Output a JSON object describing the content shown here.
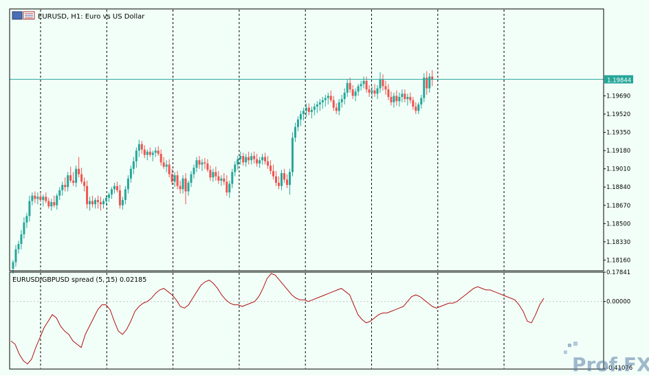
{
  "window_title": "EURUSD, H1: Euro vs US Dollar",
  "watermark": "Prof.FX",
  "colors": {
    "background": "#f2fff8",
    "bull": "#26a69a",
    "bear": "#ef5350",
    "spread_line": "#b01010",
    "price_line": "#26a69a",
    "price_tag_bg": "#26a69a",
    "frame": "#000000"
  },
  "chart_data": [
    {
      "type": "candlestick",
      "symbol": "EURUSD",
      "timeframe": "H1",
      "title": "EURUSD, H1: Euro vs US Dollar",
      "ylim": [
        1.1806,
        1.205
      ],
      "y_ticks": [
        "1.19690",
        "1.19520",
        "1.19350",
        "1.19180",
        "1.19010",
        "1.18840",
        "1.18670",
        "1.18500",
        "1.18330",
        "1.18160"
      ],
      "current_price": "1.19844",
      "grid": "vertical dashed day separators",
      "day_separator_count": 8,
      "ohlc": [
        [
          1.1808,
          1.1816,
          1.1803,
          1.1814
        ],
        [
          1.1814,
          1.183,
          1.181,
          1.1826
        ],
        [
          1.1826,
          1.1834,
          1.1822,
          1.1831
        ],
        [
          1.1831,
          1.1844,
          1.1826,
          1.184
        ],
        [
          1.184,
          1.1856,
          1.1836,
          1.1851
        ],
        [
          1.1851,
          1.186,
          1.1846,
          1.1857
        ],
        [
          1.1857,
          1.1876,
          1.1852,
          1.1871
        ],
        [
          1.1871,
          1.1879,
          1.1867,
          1.1876
        ],
        [
          1.1876,
          1.188,
          1.1869,
          1.1873
        ],
        [
          1.1873,
          1.1879,
          1.1868,
          1.1875
        ],
        [
          1.1875,
          1.1879,
          1.187,
          1.1872
        ],
        [
          1.1872,
          1.1877,
          1.1866,
          1.1875
        ],
        [
          1.1875,
          1.1879,
          1.1869,
          1.1871
        ],
        [
          1.1871,
          1.1874,
          1.1864,
          1.1866
        ],
        [
          1.1866,
          1.1873,
          1.1862,
          1.187
        ],
        [
          1.187,
          1.1876,
          1.1865,
          1.1867
        ],
        [
          1.1867,
          1.1878,
          1.1863,
          1.1876
        ],
        [
          1.1876,
          1.1884,
          1.1872,
          1.1881
        ],
        [
          1.1881,
          1.1889,
          1.1876,
          1.1886
        ],
        [
          1.1886,
          1.1893,
          1.188,
          1.1884
        ],
        [
          1.1884,
          1.1898,
          1.188,
          1.1895
        ],
        [
          1.1895,
          1.1903,
          1.1888,
          1.189
        ],
        [
          1.189,
          1.1898,
          1.1885,
          1.1888
        ],
        [
          1.1888,
          1.1904,
          1.1884,
          1.1901
        ],
        [
          1.1901,
          1.1912,
          1.1893,
          1.1896
        ],
        [
          1.1896,
          1.1902,
          1.1887,
          1.1889
        ],
        [
          1.1889,
          1.1893,
          1.188,
          1.1885
        ],
        [
          1.1885,
          1.189,
          1.1864,
          1.1868
        ],
        [
          1.1868,
          1.1875,
          1.1862,
          1.1871
        ],
        [
          1.1871,
          1.1876,
          1.1865,
          1.1868
        ],
        [
          1.1868,
          1.1874,
          1.1864,
          1.1872
        ],
        [
          1.1872,
          1.1876,
          1.1864,
          1.187
        ],
        [
          1.187,
          1.1875,
          1.1862,
          1.1868
        ],
        [
          1.1868,
          1.1873,
          1.1864,
          1.1871
        ],
        [
          1.1871,
          1.1876,
          1.1867,
          1.1874
        ],
        [
          1.1874,
          1.1879,
          1.187,
          1.1877
        ],
        [
          1.1877,
          1.1884,
          1.1873,
          1.1882
        ],
        [
          1.1882,
          1.1888,
          1.1878,
          1.1885
        ],
        [
          1.1885,
          1.1889,
          1.1879,
          1.1881
        ],
        [
          1.1881,
          1.1886,
          1.1864,
          1.1867
        ],
        [
          1.1867,
          1.1875,
          1.1863,
          1.1872
        ],
        [
          1.1872,
          1.1885,
          1.1868,
          1.1882
        ],
        [
          1.1882,
          1.1895,
          1.1878,
          1.1892
        ],
        [
          1.1892,
          1.1904,
          1.1888,
          1.1901
        ],
        [
          1.1901,
          1.1912,
          1.1896,
          1.1908
        ],
        [
          1.1908,
          1.1921,
          1.1902,
          1.1918
        ],
        [
          1.1918,
          1.1928,
          1.1912,
          1.1924
        ],
        [
          1.1924,
          1.1927,
          1.1915,
          1.1919
        ],
        [
          1.1919,
          1.1923,
          1.1911,
          1.1914
        ],
        [
          1.1914,
          1.1919,
          1.1909,
          1.1917
        ],
        [
          1.1917,
          1.1921,
          1.1912,
          1.1914
        ],
        [
          1.1914,
          1.1918,
          1.1908,
          1.1916
        ],
        [
          1.1916,
          1.1921,
          1.1912,
          1.1918
        ],
        [
          1.1918,
          1.1922,
          1.1913,
          1.1915
        ],
        [
          1.1915,
          1.1919,
          1.1904,
          1.1907
        ],
        [
          1.1907,
          1.1912,
          1.1901,
          1.1903
        ],
        [
          1.1903,
          1.1909,
          1.1898,
          1.1905
        ],
        [
          1.1905,
          1.191,
          1.1893,
          1.1896
        ],
        [
          1.1896,
          1.1901,
          1.1886,
          1.1889
        ],
        [
          1.1889,
          1.1898,
          1.1884,
          1.1895
        ],
        [
          1.1895,
          1.1899,
          1.1882,
          1.1885
        ],
        [
          1.1885,
          1.189,
          1.1878,
          1.1882
        ],
        [
          1.1882,
          1.1895,
          1.1878,
          1.1892
        ],
        [
          1.1892,
          1.1897,
          1.1868,
          1.188
        ],
        [
          1.188,
          1.189,
          1.1876,
          1.1888
        ],
        [
          1.1888,
          1.1899,
          1.1884,
          1.1896
        ],
        [
          1.1896,
          1.1905,
          1.1892,
          1.1902
        ],
        [
          1.1902,
          1.1912,
          1.1898,
          1.1909
        ],
        [
          1.1909,
          1.1913,
          1.1901,
          1.1905
        ],
        [
          1.1905,
          1.191,
          1.1899,
          1.1907
        ],
        [
          1.1907,
          1.1911,
          1.1901,
          1.1906
        ],
        [
          1.1906,
          1.191,
          1.1898,
          1.19
        ],
        [
          1.19,
          1.1904,
          1.189,
          1.1893
        ],
        [
          1.1893,
          1.1901,
          1.1889,
          1.1898
        ],
        [
          1.1898,
          1.1903,
          1.189,
          1.1894
        ],
        [
          1.1894,
          1.1899,
          1.1887,
          1.189
        ],
        [
          1.189,
          1.1895,
          1.1885,
          1.1892
        ],
        [
          1.1892,
          1.1897,
          1.1886,
          1.1889
        ],
        [
          1.1889,
          1.1895,
          1.1876,
          1.1879
        ],
        [
          1.1879,
          1.189,
          1.1874,
          1.1887
        ],
        [
          1.1887,
          1.1901,
          1.1883,
          1.1898
        ],
        [
          1.1898,
          1.1908,
          1.1894,
          1.1905
        ],
        [
          1.1905,
          1.1913,
          1.19,
          1.191
        ],
        [
          1.191,
          1.1917,
          1.1905,
          1.1913
        ],
        [
          1.1913,
          1.1916,
          1.1904,
          1.1907
        ],
        [
          1.1907,
          1.1915,
          1.1903,
          1.1912
        ],
        [
          1.1912,
          1.1917,
          1.1905,
          1.1909
        ],
        [
          1.1909,
          1.1916,
          1.1905,
          1.1913
        ],
        [
          1.1913,
          1.1917,
          1.1906,
          1.191
        ],
        [
          1.191,
          1.1915,
          1.1903,
          1.1906
        ],
        [
          1.1906,
          1.1912,
          1.1902,
          1.1909
        ],
        [
          1.1909,
          1.1915,
          1.1905,
          1.1912
        ],
        [
          1.1912,
          1.1916,
          1.1905,
          1.1908
        ],
        [
          1.1908,
          1.1913,
          1.1901,
          1.1904
        ],
        [
          1.1904,
          1.1909,
          1.1896,
          1.1899
        ],
        [
          1.1899,
          1.1905,
          1.1891,
          1.1894
        ],
        [
          1.1894,
          1.1899,
          1.1885,
          1.1888
        ],
        [
          1.1888,
          1.1894,
          1.1882,
          1.1885
        ],
        [
          1.1885,
          1.19,
          1.1881,
          1.1897
        ],
        [
          1.1897,
          1.1901,
          1.1888,
          1.1891
        ],
        [
          1.1891,
          1.1896,
          1.1883,
          1.1886
        ],
        [
          1.1886,
          1.1901,
          1.1877,
          1.1898
        ],
        [
          1.1898,
          1.1935,
          1.1894,
          1.193
        ],
        [
          1.193,
          1.1944,
          1.1926,
          1.194
        ],
        [
          1.194,
          1.195,
          1.1936,
          1.1947
        ],
        [
          1.1947,
          1.1955,
          1.1941,
          1.1952
        ],
        [
          1.1952,
          1.1958,
          1.1946,
          1.1955
        ],
        [
          1.1955,
          1.1962,
          1.1949,
          1.1958
        ],
        [
          1.1958,
          1.1962,
          1.1951,
          1.1954
        ],
        [
          1.1954,
          1.1959,
          1.1948,
          1.1956
        ],
        [
          1.1956,
          1.1962,
          1.1951,
          1.1959
        ],
        [
          1.1959,
          1.1964,
          1.1953,
          1.1961
        ],
        [
          1.1961,
          1.1966,
          1.1955,
          1.1963
        ],
        [
          1.1963,
          1.1968,
          1.1957,
          1.1965
        ],
        [
          1.1965,
          1.197,
          1.1959,
          1.1967
        ],
        [
          1.1967,
          1.1972,
          1.1961,
          1.1969
        ],
        [
          1.1969,
          1.1974,
          1.1963,
          1.1965
        ],
        [
          1.1965,
          1.1969,
          1.1955,
          1.1958
        ],
        [
          1.1958,
          1.1962,
          1.1952,
          1.1955
        ],
        [
          1.1955,
          1.1966,
          1.1951,
          1.1963
        ],
        [
          1.1963,
          1.197,
          1.1958,
          1.1966
        ],
        [
          1.1966,
          1.1976,
          1.1961,
          1.1972
        ],
        [
          1.1972,
          1.1984,
          1.1968,
          1.1981
        ],
        [
          1.1981,
          1.1986,
          1.1972,
          1.1975
        ],
        [
          1.1975,
          1.1979,
          1.1966,
          1.1969
        ],
        [
          1.1969,
          1.1976,
          1.1964,
          1.1973
        ],
        [
          1.1973,
          1.198,
          1.1969,
          1.1978
        ],
        [
          1.1978,
          1.1983,
          1.1974,
          1.198
        ],
        [
          1.198,
          1.1987,
          1.1976,
          1.1983
        ],
        [
          1.1983,
          1.1987,
          1.1972,
          1.1975
        ],
        [
          1.1975,
          1.1979,
          1.1968,
          1.1972
        ],
        [
          1.1972,
          1.1978,
          1.1966,
          1.1974
        ],
        [
          1.1974,
          1.198,
          1.1968,
          1.1971
        ],
        [
          1.1971,
          1.1979,
          1.1966,
          1.1976
        ],
        [
          1.1976,
          1.1991,
          1.1972,
          1.1984
        ],
        [
          1.1984,
          1.1989,
          1.1974,
          1.1978
        ],
        [
          1.1978,
          1.1983,
          1.197,
          1.1975
        ],
        [
          1.1975,
          1.198,
          1.1965,
          1.1968
        ],
        [
          1.1968,
          1.1973,
          1.196,
          1.1963
        ],
        [
          1.1963,
          1.1972,
          1.1958,
          1.1969
        ],
        [
          1.1969,
          1.1974,
          1.196,
          1.1964
        ],
        [
          1.1964,
          1.1972,
          1.1959,
          1.1968
        ],
        [
          1.1968,
          1.1975,
          1.1963,
          1.1971
        ],
        [
          1.1971,
          1.1975,
          1.1963,
          1.1966
        ],
        [
          1.1966,
          1.1971,
          1.196,
          1.1968
        ],
        [
          1.1968,
          1.1972,
          1.1962,
          1.1965
        ],
        [
          1.1965,
          1.1968,
          1.1956,
          1.1959
        ],
        [
          1.1959,
          1.1963,
          1.1952,
          1.1955
        ],
        [
          1.1955,
          1.1963,
          1.1952,
          1.1961
        ],
        [
          1.1961,
          1.197,
          1.1957,
          1.1967
        ],
        [
          1.1967,
          1.199,
          1.1963,
          1.1986
        ],
        [
          1.1986,
          1.1992,
          1.197,
          1.1976
        ],
        [
          1.1976,
          1.199,
          1.1972,
          1.1987
        ],
        [
          1.1987,
          1.1993,
          1.1978,
          1.1984
        ]
      ]
    },
    {
      "type": "line",
      "title": "EURUSD/GBPUSD spread (5, 15) 0.02185",
      "ylim": [
        -0.41076,
        0.17841
      ],
      "y_ticks": [
        "0.17841",
        "0.00000",
        "-0.41076"
      ],
      "zero_line": true,
      "values": [
        -0.24,
        -0.26,
        -0.32,
        -0.36,
        -0.38,
        -0.35,
        -0.28,
        -0.22,
        -0.16,
        -0.12,
        -0.08,
        -0.1,
        -0.15,
        -0.18,
        -0.2,
        -0.24,
        -0.26,
        -0.28,
        -0.2,
        -0.15,
        -0.1,
        -0.05,
        -0.02,
        -0.02,
        -0.05,
        -0.12,
        -0.18,
        -0.2,
        -0.17,
        -0.12,
        -0.06,
        -0.03,
        -0.01,
        0.0,
        0.02,
        0.05,
        0.07,
        0.08,
        0.06,
        0.04,
        0.01,
        -0.03,
        -0.04,
        -0.02,
        0.02,
        0.06,
        0.1,
        0.12,
        0.13,
        0.11,
        0.08,
        0.04,
        0.01,
        -0.01,
        -0.02,
        -0.02,
        -0.03,
        -0.02,
        -0.01,
        0.0,
        0.03,
        0.08,
        0.14,
        0.17,
        0.16,
        0.13,
        0.1,
        0.07,
        0.04,
        0.02,
        0.01,
        0.01,
        0.0,
        0.01,
        0.02,
        0.03,
        0.04,
        0.05,
        0.06,
        0.07,
        0.08,
        0.06,
        0.04,
        -0.02,
        -0.08,
        -0.11,
        -0.13,
        -0.12,
        -0.1,
        -0.08,
        -0.07,
        -0.07,
        -0.06,
        -0.05,
        -0.04,
        -0.03,
        0.0,
        0.03,
        0.04,
        0.03,
        0.01,
        -0.01,
        -0.03,
        -0.04,
        -0.03,
        -0.02,
        -0.01,
        -0.01,
        0.0,
        0.02,
        0.04,
        0.06,
        0.08,
        0.09,
        0.08,
        0.07,
        0.07,
        0.06,
        0.05,
        0.04,
        0.03,
        0.02,
        0.01,
        -0.02,
        -0.06,
        -0.12,
        -0.13,
        -0.08,
        -0.02,
        0.02
      ]
    }
  ]
}
